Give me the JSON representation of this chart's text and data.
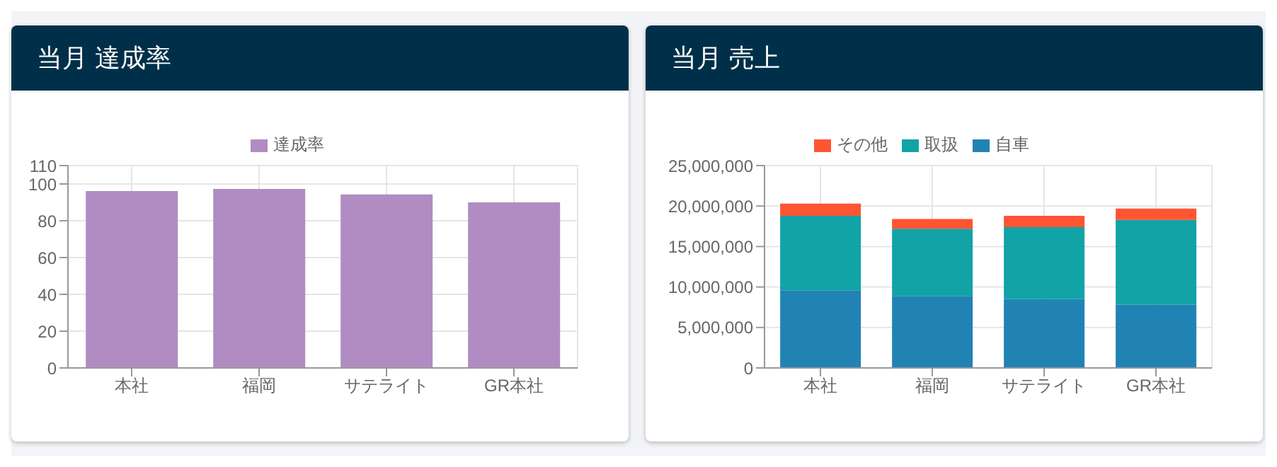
{
  "chart_data": [
    {
      "type": "bar",
      "title": "当月 達成率",
      "categories": [
        "本社",
        "福岡",
        "サテライト",
        "GR本社"
      ],
      "series": [
        {
          "name": "達成率",
          "color": "#b08cc2",
          "values": [
            96.2,
            97.3,
            94.3,
            90.0
          ]
        }
      ],
      "ylim": [
        0,
        110
      ],
      "yticks": [
        0,
        20,
        40,
        60,
        80,
        100,
        110
      ],
      "grid": true,
      "legend": "top"
    },
    {
      "type": "bar",
      "title": "当月 売上",
      "categories": [
        "本社",
        "福岡",
        "サテライト",
        "GR本社"
      ],
      "stacked": true,
      "series": [
        {
          "name": "自車",
          "color": "#2183b4",
          "values": [
            9600000,
            8900000,
            8500000,
            7800000
          ]
        },
        {
          "name": "取扱",
          "color": "#12a3a6",
          "values": [
            9200000,
            8300000,
            8900000,
            10500000
          ]
        },
        {
          "name": "その他",
          "color": "#ff5533",
          "values": [
            1500000,
            1200000,
            1400000,
            1400000
          ]
        }
      ],
      "ylim": [
        0,
        25000000
      ],
      "yticks": [
        0,
        {
          "value": 5000000,
          "label": "5,000,000"
        },
        {
          "value": 10000000,
          "label": "10,000,000"
        },
        {
          "value": 15000000,
          "label": "15,000,000"
        },
        {
          "value": 20000000,
          "label": "20,000,000"
        },
        {
          "value": 25000000,
          "label": "25,000,000"
        }
      ],
      "grid": true,
      "legend": "top"
    }
  ]
}
